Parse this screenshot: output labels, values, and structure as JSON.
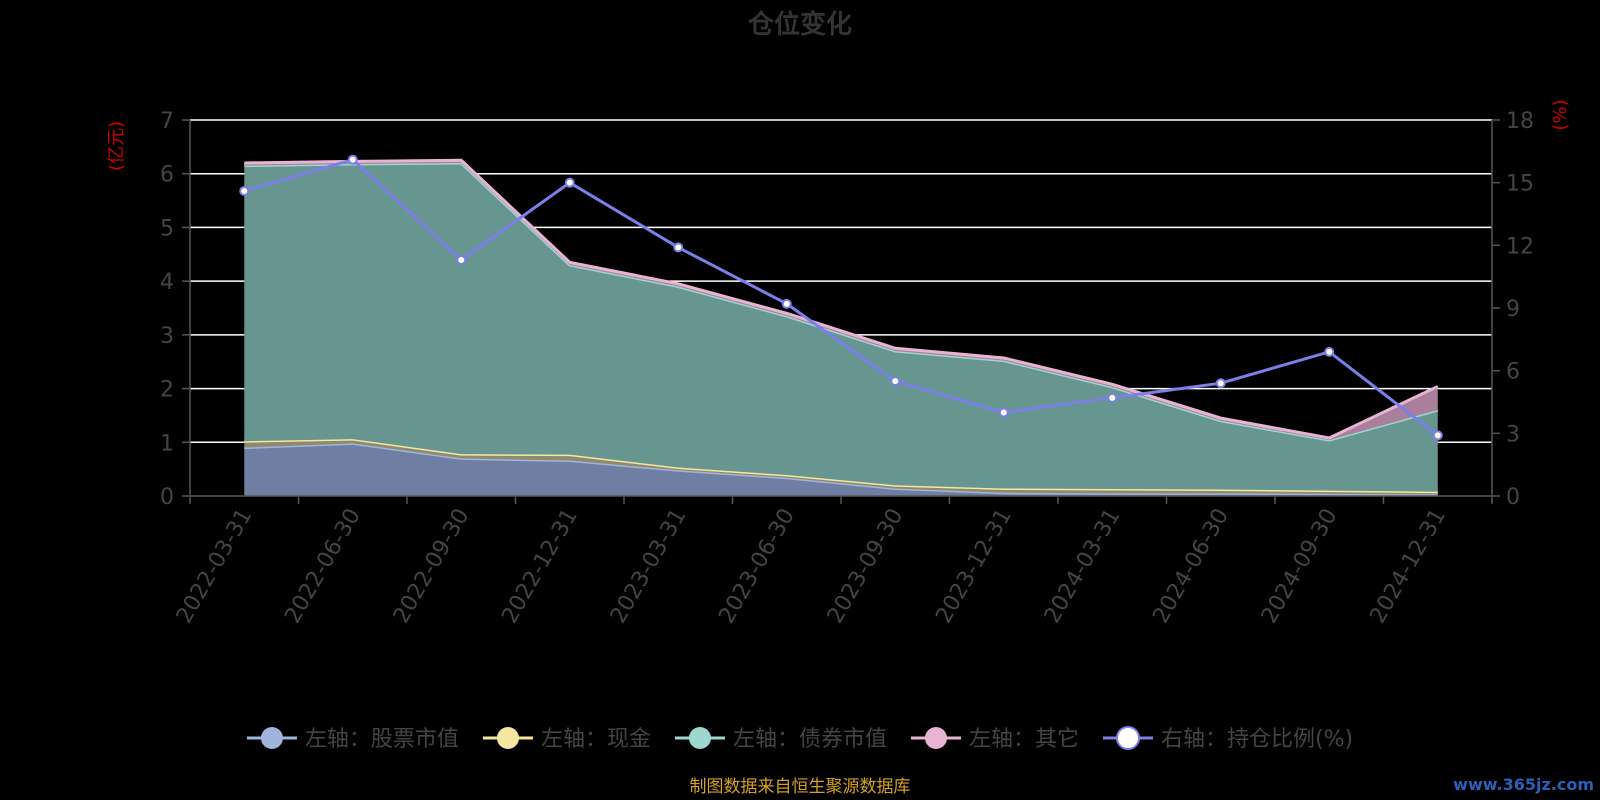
{
  "title": "仓位变化",
  "source_note": "制图数据来自恒生聚源数据库",
  "watermark": "www.365jz.com",
  "chart_data": {
    "type": "area",
    "categories": [
      "2022-03-31",
      "2022-06-30",
      "2022-09-30",
      "2022-12-31",
      "2023-03-31",
      "2023-06-30",
      "2023-09-30",
      "2023-12-31",
      "2024-03-31",
      "2024-06-30",
      "2024-09-30",
      "2024-12-31"
    ],
    "left_axis": {
      "unit": "(亿元)",
      "ylim": [
        0,
        7
      ],
      "ticks": [
        0,
        1,
        2,
        3,
        4,
        5,
        6,
        7
      ]
    },
    "right_axis": {
      "unit": "(%)",
      "ylim": [
        0,
        18
      ],
      "ticks": [
        0,
        3,
        6,
        9,
        12,
        15,
        18
      ]
    },
    "grid": true,
    "stacked": true,
    "legend_placement": "bottom",
    "series": [
      {
        "name": "左轴：股票市值",
        "axis": "left",
        "kind": "area",
        "color": "#a0b4dc",
        "fill": "#6e7fa3",
        "values": [
          0.9,
          0.98,
          0.7,
          0.66,
          0.48,
          0.34,
          0.14,
          0.06,
          0.05,
          0.05,
          0.04,
          0.03
        ]
      },
      {
        "name": "左轴：现金",
        "axis": "left",
        "kind": "area",
        "color": "#f5e6a0",
        "fill": "#8f8a6e",
        "values": [
          0.12,
          0.08,
          0.08,
          0.11,
          0.05,
          0.05,
          0.06,
          0.08,
          0.08,
          0.07,
          0.06,
          0.05
        ]
      },
      {
        "name": "左轴：债券市值",
        "axis": "left",
        "kind": "area",
        "color": "#9ed6d0",
        "fill": "#679590",
        "values": [
          5.13,
          5.12,
          5.42,
          3.53,
          3.37,
          2.96,
          2.5,
          2.38,
          1.9,
          1.28,
          0.94,
          1.52
        ]
      },
      {
        "name": "左轴：其它",
        "axis": "left",
        "kind": "area",
        "color": "#e8b4d4",
        "fill": "#a97f9b",
        "values": [
          0.05,
          0.05,
          0.05,
          0.05,
          0.05,
          0.05,
          0.05,
          0.05,
          0.05,
          0.05,
          0.04,
          0.44
        ]
      },
      {
        "name": "右轴：持仓比例(%)",
        "axis": "right",
        "kind": "line",
        "color": "#7b7fe8",
        "values": [
          14.6,
          16.1,
          11.3,
          15.0,
          11.9,
          9.2,
          5.5,
          4.0,
          4.7,
          5.4,
          6.9,
          2.9
        ]
      }
    ]
  }
}
